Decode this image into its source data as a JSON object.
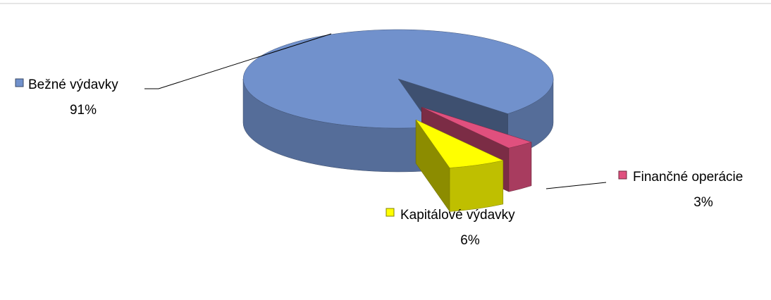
{
  "chart_data": {
    "type": "pie",
    "categories": [
      "Bežné výdavky",
      "Kapitálové výdavky",
      "Finančné operácie"
    ],
    "values": [
      91,
      6,
      3
    ],
    "value_labels": [
      "91%",
      "6%",
      "3%"
    ],
    "colors": [
      "#7191cc",
      "#ffff00",
      "#e0507e"
    ]
  }
}
